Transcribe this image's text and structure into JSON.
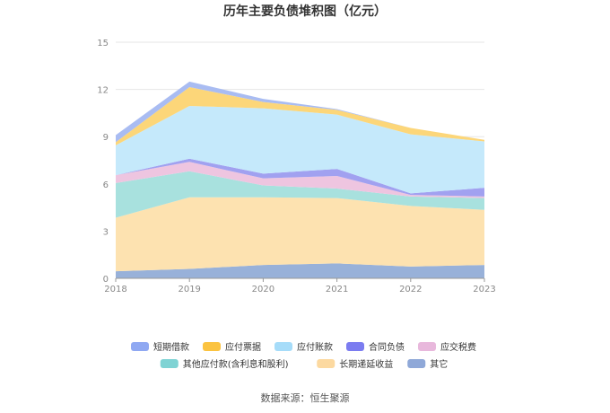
{
  "chart_data": {
    "type": "area",
    "stacked": true,
    "title": "历年主要负债堆积图（亿元）",
    "x": [
      "2018",
      "2019",
      "2020",
      "2021",
      "2022",
      "2023"
    ],
    "ylim": [
      0,
      15
    ],
    "yticks": [
      0,
      3,
      6,
      9,
      12,
      15
    ],
    "grid": true,
    "legend_position": "bottom",
    "series": [
      {
        "name": "其它",
        "color": "#98b1d9",
        "values": [
          0.45,
          0.6,
          0.85,
          0.95,
          0.75,
          0.85
        ]
      },
      {
        "name": "长期递延收益",
        "color": "#fde2b0",
        "values": [
          3.4,
          4.55,
          4.3,
          4.15,
          3.85,
          3.5
        ]
      },
      {
        "name": "其他应付款(含利息和股利)",
        "color": "#a8e1de",
        "values": [
          2.2,
          1.65,
          0.75,
          0.6,
          0.6,
          0.75
        ]
      },
      {
        "name": "应交税费",
        "color": "#eec5e0",
        "values": [
          0.5,
          0.6,
          0.45,
          0.8,
          0.1,
          0.1
        ]
      },
      {
        "name": "合同负债",
        "color": "#a1a1f0",
        "values": [
          0,
          0.2,
          0.3,
          0.45,
          0.1,
          0.55
        ]
      },
      {
        "name": "应付账款",
        "color": "#c5e9fb",
        "values": [
          1.9,
          3.35,
          4.15,
          3.45,
          3.75,
          2.95
        ]
      },
      {
        "name": "应付票据",
        "color": "#fcd679",
        "values": [
          0.2,
          1.2,
          0.4,
          0.3,
          0.4,
          0.1
        ]
      },
      {
        "name": "短期借款",
        "color": "#a9bcf2",
        "values": [
          0.45,
          0.35,
          0.2,
          0.05,
          0,
          0
        ]
      }
    ],
    "legend": [
      {
        "name": "短期借款",
        "color": "#8fa8f2"
      },
      {
        "name": "应付票据",
        "color": "#fbc340"
      },
      {
        "name": "应付账款",
        "color": "#a6dcf9"
      },
      {
        "name": "合同负债",
        "color": "#7b7cf0"
      },
      {
        "name": "应交税费",
        "color": "#e8b8dc"
      },
      {
        "name": "其他应付款(含利息和股利)",
        "color": "#7fd3d4"
      },
      {
        "name": "长期递延收益",
        "color": "#fcd9a0"
      },
      {
        "name": "其它",
        "color": "#8fa8d8"
      }
    ],
    "source": "数据来源：恒生聚源"
  }
}
